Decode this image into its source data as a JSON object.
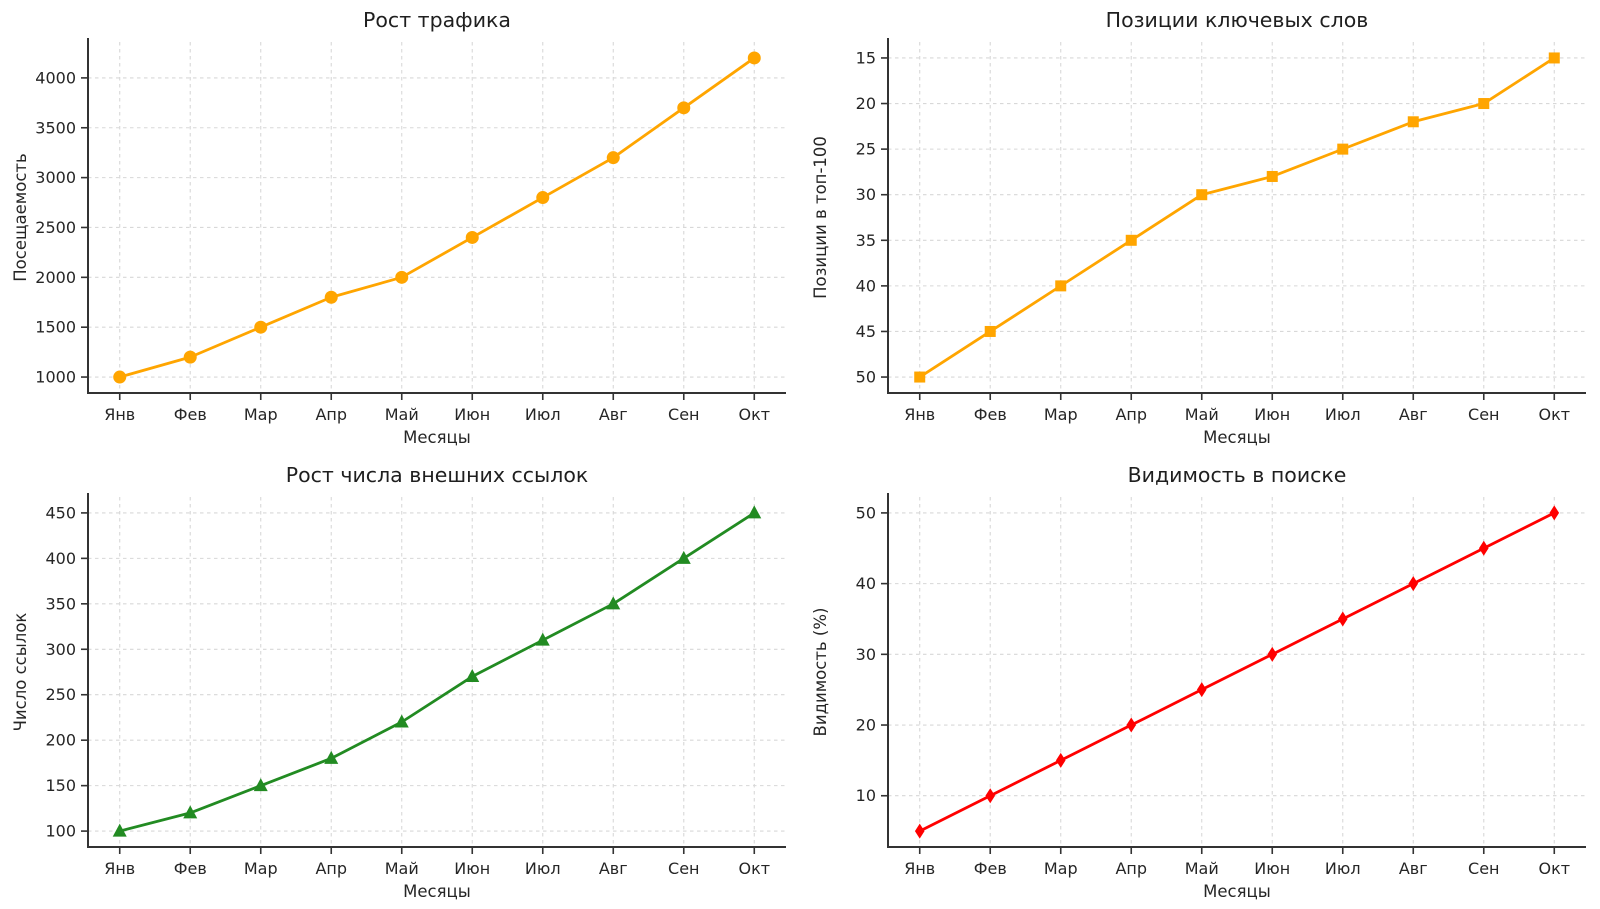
{
  "figure": {
    "background": "#ffffff",
    "layout": "2x2-grid",
    "grid_visible": true,
    "text_color": "#262626",
    "grid_color": "#d8d8d8",
    "spine_color": "#333333"
  },
  "chart_data": [
    {
      "type": "line",
      "title": "Рост трафика",
      "xlabel": "Месяцы",
      "ylabel": "Посещаемость",
      "categories": [
        "Янв",
        "Фев",
        "Мар",
        "Апр",
        "Май",
        "Июн",
        "Июл",
        "Авг",
        "Сен",
        "Окт"
      ],
      "values": [
        1000,
        1200,
        1500,
        1800,
        2000,
        2400,
        2800,
        3200,
        3700,
        4200
      ],
      "color": "#FFA500",
      "marker": "circle",
      "y_ticks": [
        1000,
        1500,
        2000,
        2500,
        3000,
        3500,
        4000
      ],
      "y_axis_top_value": 4360,
      "y_axis_bottom_value": 840,
      "y_inverted": false,
      "legend": "none",
      "grid": true
    },
    {
      "type": "line",
      "title": "Позиции ключевых слов",
      "xlabel": "Месяцы",
      "ylabel": "Позиции в топ-100",
      "categories": [
        "Янв",
        "Фев",
        "Мар",
        "Апр",
        "Май",
        "Июн",
        "Июл",
        "Авг",
        "Сен",
        "Окт"
      ],
      "values": [
        50,
        45,
        40,
        35,
        30,
        28,
        25,
        22,
        20,
        15
      ],
      "color": "#FFA500",
      "marker": "square",
      "y_ticks": [
        15,
        20,
        25,
        30,
        35,
        40,
        45,
        50
      ],
      "y_axis_top_value": 13.25,
      "y_axis_bottom_value": 51.75,
      "y_inverted": true,
      "legend": "none",
      "grid": true
    },
    {
      "type": "line",
      "title": "Рост числа внешних ссылок",
      "xlabel": "Месяцы",
      "ylabel": "Число ссылок",
      "categories": [
        "Янв",
        "Фев",
        "Мар",
        "Апр",
        "Май",
        "Июн",
        "Июл",
        "Авг",
        "Сен",
        "Окт"
      ],
      "values": [
        100,
        120,
        150,
        180,
        220,
        270,
        310,
        350,
        400,
        450
      ],
      "color": "#228B22",
      "marker": "triangle",
      "y_ticks": [
        100,
        150,
        200,
        250,
        300,
        350,
        400,
        450
      ],
      "y_axis_top_value": 467.5,
      "y_axis_bottom_value": 82.5,
      "y_inverted": false,
      "legend": "none",
      "grid": true
    },
    {
      "type": "line",
      "title": "Видимость в поиске",
      "xlabel": "Месяцы",
      "ylabel": "Видимость (%)",
      "categories": [
        "Янв",
        "Фев",
        "Мар",
        "Апр",
        "Май",
        "Июн",
        "Июл",
        "Авг",
        "Сен",
        "Окт"
      ],
      "values": [
        5,
        10,
        15,
        20,
        25,
        30,
        35,
        40,
        45,
        50
      ],
      "color": "#FF0000",
      "marker": "diamond",
      "y_ticks": [
        10,
        20,
        30,
        40,
        50
      ],
      "y_axis_top_value": 52.25,
      "y_axis_bottom_value": 2.75,
      "y_inverted": false,
      "legend": "none",
      "grid": true
    }
  ]
}
